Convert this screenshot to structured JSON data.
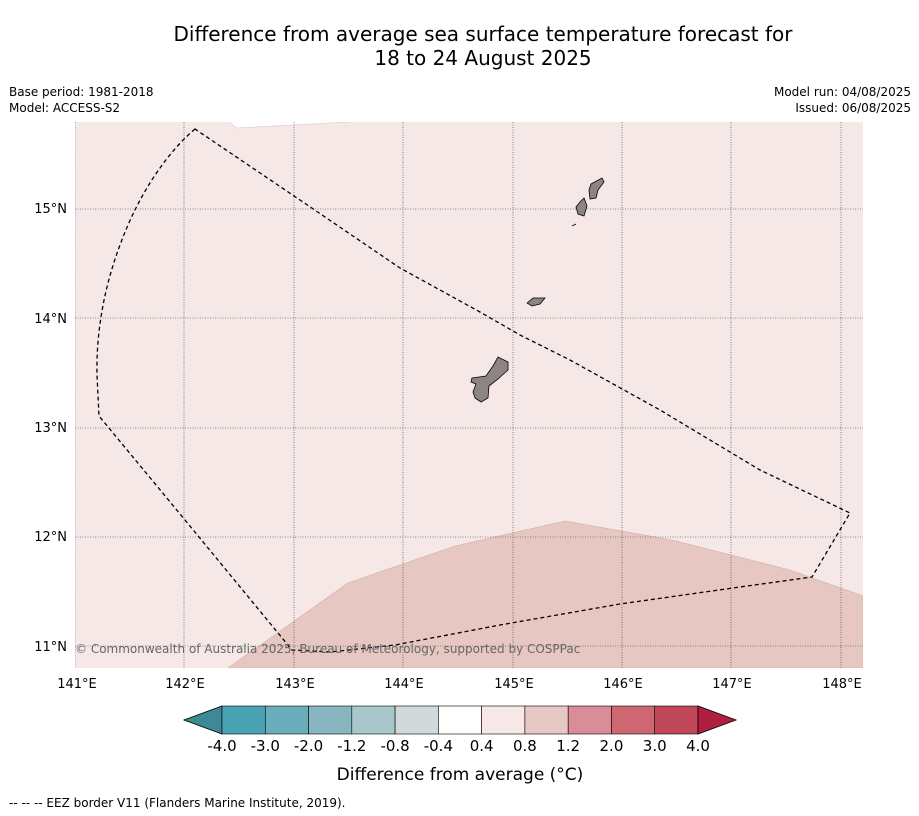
{
  "title_line1": "Difference from average sea surface temperature forecast for",
  "title_line2": "18 to 24 August 2025",
  "meta_left": {
    "base_period": "Base period: 1981-2018",
    "model": "Model: ACCESS-S2"
  },
  "meta_right": {
    "model_run": "Model run: 04/08/2025",
    "issued": "Issued: 06/08/2025"
  },
  "map": {
    "lon_labels": [
      "141°E",
      "142°E",
      "143°E",
      "144°E",
      "145°E",
      "146°E",
      "147°E",
      "148°E"
    ],
    "lat_labels": [
      "15°N",
      "14°N",
      "13°N",
      "12°N",
      "11°N"
    ],
    "copyright": "© Commonwealth of Australia 2025, Bureau of Meteorology, supported by COSPPac",
    "fill_colors": {
      "anom_0_4_0_8": "#f5e8e7",
      "anom_0_8_1_2": "#e7c7c2",
      "land": "#8c8584"
    }
  },
  "colorbar": {
    "labels": [
      "-4.0",
      "-3.0",
      "-2.0",
      "-1.2",
      "-0.8",
      "-0.4",
      "0.4",
      "0.8",
      "1.2",
      "2.0",
      "3.0",
      "4.0"
    ],
    "colors": [
      "#3f8896",
      "#4aa3b3",
      "#6aaebb",
      "#89b5c0",
      "#a7c7cb",
      "#d0d9dc",
      "#ffffff",
      "#f5e8e7",
      "#e7c7c2",
      "#d98d98",
      "#ce6771",
      "#c0485a",
      "#b0203e"
    ],
    "label": "Difference from average (°C)"
  },
  "footnote": "--  --  -- EEZ border V11 (Flanders Marine Institute, 2019)."
}
